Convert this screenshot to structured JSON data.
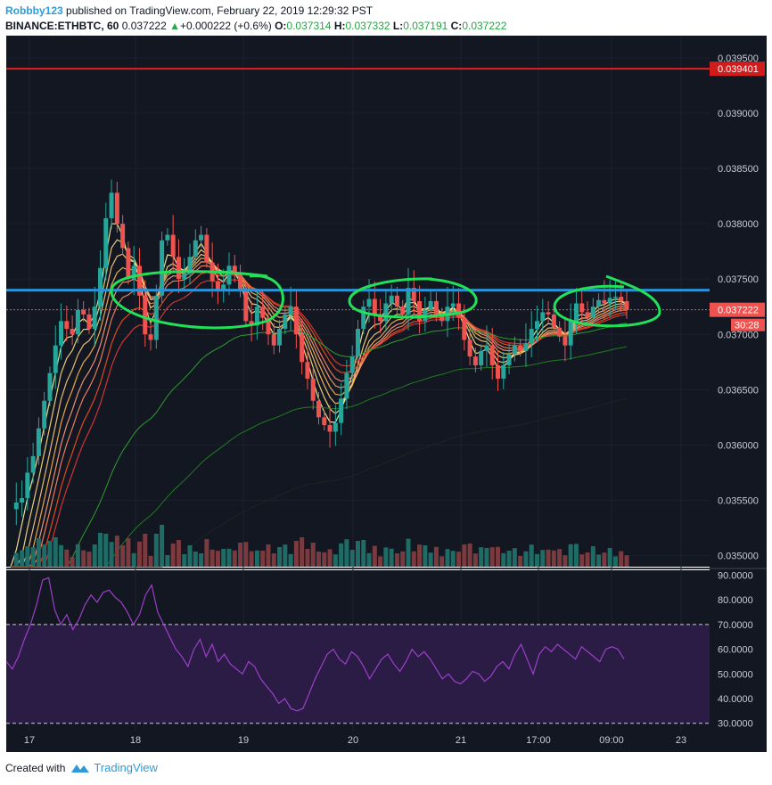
{
  "header": {
    "user": "Robbby123",
    "published_text": "published on TradingView.com, February 22, 2019 12:29:32 PST",
    "symbol": "BINANCE:ETHBTC, 60",
    "last": "0.037222",
    "change_arrow": "▲",
    "change": "+0.000222 (+0.6%)",
    "o_label": "O:",
    "o_value": "0.037314",
    "h_label": "H:",
    "h_value": "0.037332",
    "l_label": "L:",
    "l_value": "0.037191",
    "c_label": "C:",
    "c_value": "0.037222"
  },
  "footer": {
    "created_with": "Created with",
    "brand": "TradingView",
    "logo_icon": "tradingview-logo-icon"
  },
  "price_scale": {
    "ticks": [
      "0.039500",
      "0.039000",
      "0.038500",
      "0.038000",
      "0.037500",
      "0.037000",
      "0.036500",
      "0.036000",
      "0.035500",
      "0.035000"
    ],
    "red_level_label": "0.039401",
    "last_price_label": "0.037222",
    "countdown_label": "30:28"
  },
  "rsi_scale": {
    "ticks": [
      "90.0000",
      "80.0000",
      "70.0000",
      "60.0000",
      "50.0000",
      "40.0000",
      "30.0000"
    ]
  },
  "time_axis": {
    "ticks": [
      "17",
      "18",
      "19",
      "20",
      "21",
      "17:00",
      "09:00",
      "23"
    ]
  },
  "colors": {
    "background": "#131722",
    "up": "#26a69a",
    "down": "#ef5350",
    "red_line": "#e0201b",
    "blue_line": "#2c94d6",
    "annotation": "#23e05a",
    "rsi": "#9c3fc9",
    "rsi_band": "#2b1c45"
  },
  "chart_data": [
    {
      "type": "candlestick",
      "symbol": "ETHBTC",
      "exchange": "BINANCE",
      "interval": "60",
      "y_range": [
        0.0349,
        0.0397
      ],
      "x_ticks": [
        "17",
        "18",
        "19",
        "20",
        "21",
        "17:00",
        "09:00",
        "23"
      ],
      "horizontal_levels": [
        {
          "value": 0.039401,
          "color": "#e0201b"
        },
        {
          "value": 0.0374,
          "color": "#2c94d6"
        }
      ],
      "last_price": 0.037222,
      "close_series": [
        0.03542,
        0.03548,
        0.03552,
        0.03575,
        0.0359,
        0.03615,
        0.0364,
        0.03665,
        0.0369,
        0.03712,
        0.03705,
        0.037,
        0.03722,
        0.03718,
        0.03705,
        0.03725,
        0.0376,
        0.03805,
        0.03828,
        0.038,
        0.03778,
        0.0375,
        0.03762,
        0.03735,
        0.037,
        0.03695,
        0.03735,
        0.03785,
        0.0379,
        0.0377,
        0.0375,
        0.03755,
        0.0377,
        0.03785,
        0.0379,
        0.03765,
        0.03748,
        0.0374,
        0.03745,
        0.03762,
        0.03755,
        0.0374,
        0.03712,
        0.03708,
        0.03725,
        0.03715,
        0.037,
        0.0369,
        0.03705,
        0.03718,
        0.03725,
        0.037,
        0.03675,
        0.0366,
        0.0364,
        0.03625,
        0.03618,
        0.03612,
        0.0362,
        0.03642,
        0.03665,
        0.0368,
        0.03705,
        0.03725,
        0.03732,
        0.03718,
        0.03712,
        0.03728,
        0.03735,
        0.03725,
        0.03718,
        0.03742,
        0.0373,
        0.03712,
        0.03722,
        0.0373,
        0.03718,
        0.03712,
        0.03725,
        0.03728,
        0.03715,
        0.03695,
        0.0368,
        0.03672,
        0.03685,
        0.0369,
        0.03672,
        0.0366,
        0.03672,
        0.03682,
        0.0369,
        0.03685,
        0.03692,
        0.03705,
        0.03712,
        0.0372,
        0.03718,
        0.03706,
        0.03698,
        0.0369,
        0.03712,
        0.03728,
        0.0372,
        0.03715,
        0.03725,
        0.03731,
        0.03728,
        0.03733,
        0.03734,
        0.0373,
        0.03722
      ]
    },
    {
      "type": "line",
      "name": "RSI",
      "y_range": [
        27,
        92
      ],
      "band": [
        30,
        70
      ],
      "y_ticks": [
        "90.0000",
        "80.0000",
        "70.0000",
        "60.0000",
        "50.0000",
        "40.0000",
        "30.0000"
      ],
      "values": [
        55,
        52,
        57,
        64,
        70,
        78,
        88,
        89,
        76,
        70,
        74,
        68,
        72,
        78,
        82,
        79,
        83,
        84,
        81,
        79,
        75,
        70,
        74,
        82,
        86,
        75,
        70,
        65,
        60,
        57,
        53,
        60,
        64,
        57,
        62,
        55,
        58,
        54,
        52,
        50,
        55,
        53,
        48,
        45,
        42,
        38,
        40,
        36,
        35,
        36,
        42,
        48,
        53,
        58,
        60,
        56,
        54,
        59,
        57,
        53,
        48,
        52,
        56,
        58,
        54,
        51,
        55,
        60,
        57,
        59,
        56,
        52,
        48,
        50,
        47,
        46,
        48,
        51,
        50,
        47,
        49,
        53,
        55,
        52,
        58,
        62,
        56,
        50,
        58,
        61,
        59,
        62,
        60,
        58,
        56,
        61,
        59,
        57,
        55,
        60,
        61,
        60,
        56
      ]
    }
  ]
}
